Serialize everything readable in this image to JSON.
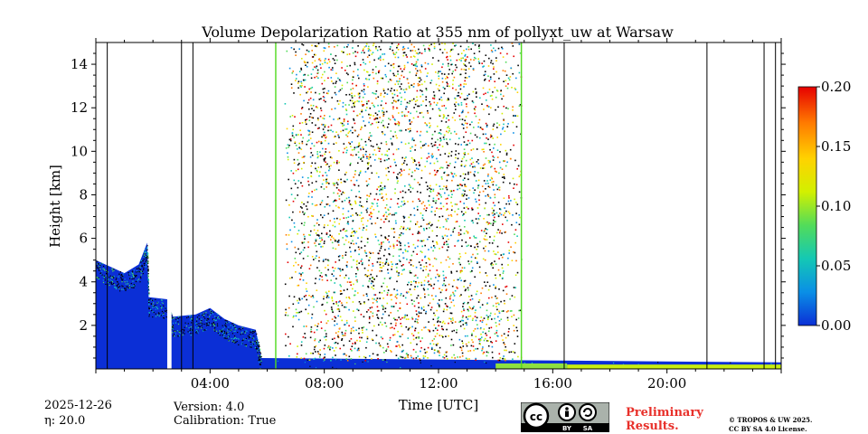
{
  "chart_data": {
    "type": "heatmap",
    "title": "Volume Depolarization Ratio at 355 nm of pollyxt_uw at Warsaw",
    "xlabel": "Time [UTC]",
    "ylabel": "Height [km]",
    "xlim_hours": [
      0,
      24
    ],
    "ylim_km": [
      0,
      15
    ],
    "x_ticks": [
      {
        "hour": 4,
        "label": "04:00"
      },
      {
        "hour": 8,
        "label": "08:00"
      },
      {
        "hour": 12,
        "label": "12:00"
      },
      {
        "hour": 16,
        "label": "16:00"
      },
      {
        "hour": 20,
        "label": "20:00"
      }
    ],
    "y_ticks": [
      {
        "value": 2,
        "label": "2"
      },
      {
        "value": 4,
        "label": "4"
      },
      {
        "value": 6,
        "label": "6"
      },
      {
        "value": 8,
        "label": "8"
      },
      {
        "value": 10,
        "label": "10"
      },
      {
        "value": 12,
        "label": "12"
      },
      {
        "value": 14,
        "label": "14"
      }
    ],
    "colorbar": {
      "range": [
        0.0,
        0.2
      ],
      "ticks": [
        {
          "value": 0.0,
          "label": "0.00"
        },
        {
          "value": 0.05,
          "label": "0.05"
        },
        {
          "value": 0.1,
          "label": "0.10"
        },
        {
          "value": 0.15,
          "label": "0.15"
        },
        {
          "value": 0.2,
          "label": "0.20"
        }
      ],
      "colormap": [
        "#0b2fd6",
        "#0a8fe6",
        "#14c8b4",
        "#52dc5a",
        "#d2f000",
        "#ffd200",
        "#ff7a00",
        "#e60000"
      ]
    },
    "cloud_layer_top_km": [
      {
        "hour": 0.0,
        "top": 5.0
      },
      {
        "hour": 0.5,
        "top": 4.7
      },
      {
        "hour": 1.0,
        "top": 4.4
      },
      {
        "hour": 1.5,
        "top": 4.8
      },
      {
        "hour": 1.8,
        "top": 5.8
      },
      {
        "hour": 1.85,
        "top": 3.3
      },
      {
        "hour": 2.5,
        "top": 3.2
      },
      {
        "hour": 2.7,
        "top": 2.4
      },
      {
        "hour": 3.5,
        "top": 2.5
      },
      {
        "hour": 4.0,
        "top": 2.8
      },
      {
        "hour": 4.5,
        "top": 2.3
      },
      {
        "hour": 5.0,
        "top": 2.0
      },
      {
        "hour": 5.6,
        "top": 1.8
      },
      {
        "hour": 5.8,
        "top": 0.5
      },
      {
        "hour": 24.0,
        "top": 0.3
      }
    ],
    "data_gap_hours": [
      2.5,
      2.65
    ],
    "noisy_daytime_hours": [
      6.6,
      14.9
    ],
    "vertical_marker_lines_hours": [
      0.4,
      3.0,
      3.4,
      6.3,
      14.9,
      16.4,
      21.4,
      23.4,
      23.8
    ],
    "green_marker_lines_hours": [
      6.3,
      14.9
    ]
  },
  "footer": {
    "date": "2025-12-26",
    "eta": "η: 20.0",
    "version": "Version: 4.0",
    "calibration": "Calibration: True",
    "preliminary_line1": "Preliminary",
    "preliminary_line2": "Results.",
    "license_line1": "© TROPOS & UW 2025.",
    "license_line2": "CC BY SA 4.0 License.",
    "cc_badge_left": "BY",
    "cc_badge_right": "SA"
  }
}
